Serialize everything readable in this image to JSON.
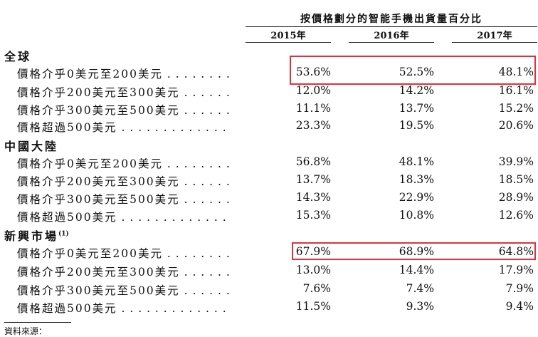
{
  "header": {
    "caption": "按價格劃分的智能手機出貨量百分比",
    "years": [
      "2015年",
      "2016年",
      "2017年"
    ]
  },
  "sections": [
    {
      "title": "全球",
      "rows": [
        {
          "label": "價格介乎0美元至200美元",
          "values": [
            "53.6%",
            "52.5%",
            "48.1%"
          ]
        },
        {
          "label": "價格介乎200美元至300美元",
          "values": [
            "12.0%",
            "14.2%",
            "16.1%"
          ]
        },
        {
          "label": "價格介乎300美元至500美元",
          "values": [
            "11.1%",
            "13.7%",
            "15.2%"
          ]
        },
        {
          "label": "價格超過500美元",
          "values": [
            "23.3%",
            "19.5%",
            "20.6%"
          ]
        }
      ]
    },
    {
      "title": "中國大陸",
      "rows": [
        {
          "label": "價格介乎0美元至200美元",
          "values": [
            "56.8%",
            "48.1%",
            "39.9%"
          ]
        },
        {
          "label": "價格介乎200美元至300美元",
          "values": [
            "13.7%",
            "18.3%",
            "18.5%"
          ]
        },
        {
          "label": "價格介乎300美元至500美元",
          "values": [
            "14.3%",
            "22.9%",
            "28.9%"
          ]
        },
        {
          "label": "價格超過500美元",
          "values": [
            "15.3%",
            "10.8%",
            "12.6%"
          ]
        }
      ]
    },
    {
      "title": "新興市場",
      "note": "(1)",
      "rows": [
        {
          "label": "價格介乎0美元至200美元",
          "values": [
            "67.9%",
            "68.9%",
            "64.8%"
          ]
        },
        {
          "label": "價格介乎200美元至300美元",
          "values": [
            "13.0%",
            "14.4%",
            "17.9%"
          ]
        },
        {
          "label": "價格介乎300美元至500美元",
          "values": [
            "7.6%",
            "7.4%",
            "7.9%"
          ]
        },
        {
          "label": "價格超過500美元",
          "values": [
            "11.5%",
            "9.3%",
            "9.4%"
          ]
        }
      ]
    }
  ],
  "footnote": "資料來源：",
  "highlight_color": "#e0323a"
}
